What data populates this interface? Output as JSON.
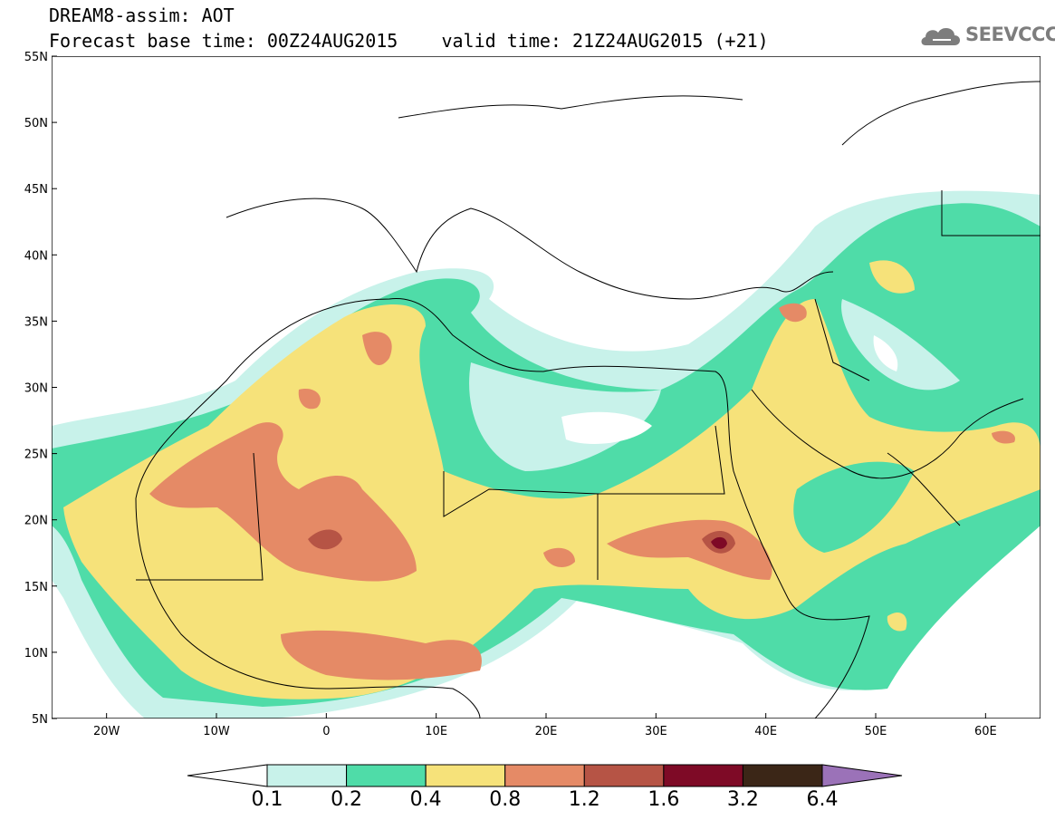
{
  "header": {
    "line1": "DREAM8-assim: AOT",
    "line2": "Forecast base time: 00Z24AUG2015    valid time: 21Z24AUG2015 (+21)"
  },
  "logo": {
    "text": "SEEVCCC",
    "icon": "cloud-icon"
  },
  "map": {
    "lat_labels": [
      "55N",
      "50N",
      "45N",
      "40N",
      "35N",
      "30N",
      "25N",
      "20N",
      "15N",
      "10N",
      "5N"
    ],
    "lon_labels": [
      "20W",
      "10W",
      "0",
      "10E",
      "20E",
      "30E",
      "40E",
      "50E",
      "60E"
    ],
    "extent": {
      "lon": [
        -25,
        65
      ],
      "lat": [
        5,
        55
      ]
    }
  },
  "colorbar": {
    "labels": [
      "0.1",
      "0.2",
      "0.4",
      "0.8",
      "1.2",
      "1.6",
      "3.2",
      "6.4"
    ],
    "colors": [
      "#c8f2ea",
      "#4fdca8",
      "#f6e27a",
      "#e58a66",
      "#b65445",
      "#7e0a26",
      "#3b2617",
      "#9b72b8"
    ],
    "under_color": "#ffffff"
  }
}
